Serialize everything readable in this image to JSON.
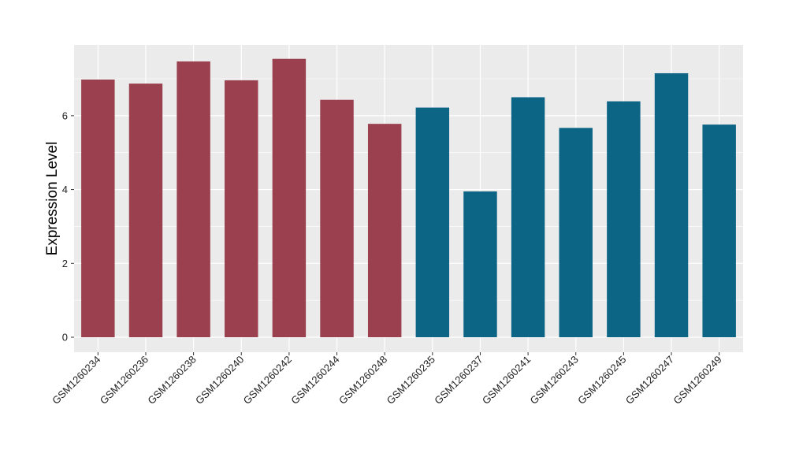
{
  "chart_data": {
    "type": "bar",
    "title": "",
    "xlabel": "",
    "ylabel": "Expression Level",
    "ylim": [
      0,
      7.9
    ],
    "yticks": [
      0,
      2,
      4,
      6
    ],
    "grid": true,
    "legend": "none",
    "categories": [
      "GSM1260234",
      "GSM1260236",
      "GSM1260238",
      "GSM1260240",
      "GSM1260242",
      "GSM1260244",
      "GSM1260248",
      "GSM1260235",
      "GSM1260237",
      "GSM1260241",
      "GSM1260243",
      "GSM1260245",
      "GSM1260247",
      "GSM1260249"
    ],
    "values": [
      6.98,
      6.87,
      7.47,
      6.96,
      7.54,
      6.43,
      5.78,
      6.22,
      3.95,
      6.5,
      5.67,
      6.39,
      7.15,
      5.76
    ],
    "groups": [
      "a",
      "a",
      "a",
      "a",
      "a",
      "a",
      "a",
      "b",
      "b",
      "b",
      "b",
      "b",
      "b",
      "b"
    ],
    "colors": {
      "a": "#9A404E",
      "b": "#0C6585"
    },
    "panel_background": "#EBEBEB",
    "grid_color": "#FFFFFF"
  }
}
